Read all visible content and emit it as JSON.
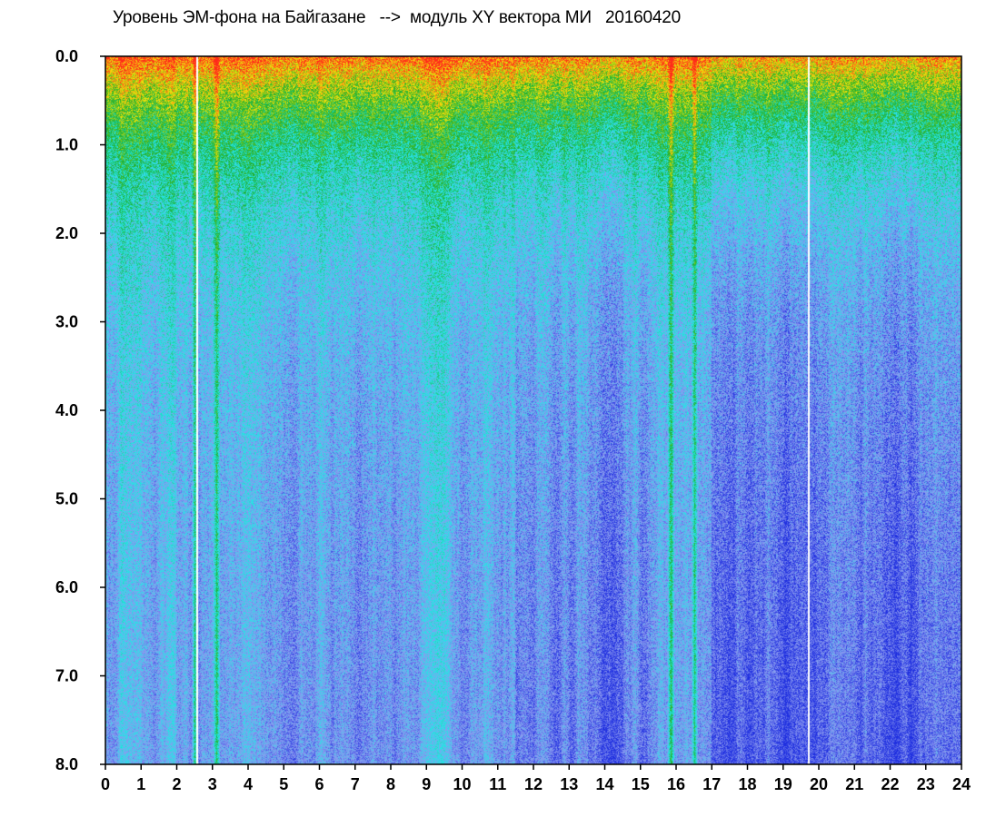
{
  "chart_data": {
    "type": "heatmap",
    "title": "Уровень ЭМ-фона на Байгазане   -->  модуль XY вектора МИ   20160420",
    "xlabel": "",
    "ylabel": "",
    "xlim": [
      0,
      24
    ],
    "ylim": [
      0,
      8
    ],
    "x_ticks": [
      "0",
      "1",
      "2",
      "3",
      "4",
      "5",
      "6",
      "7",
      "8",
      "9",
      "10",
      "11",
      "12",
      "13",
      "14",
      "15",
      "16",
      "17",
      "18",
      "19",
      "20",
      "21",
      "22",
      "23",
      "24"
    ],
    "y_ticks": [
      "0.0",
      "1.0",
      "2.0",
      "3.0",
      "4.0",
      "5.0",
      "6.0",
      "7.0",
      "8.0"
    ],
    "y_axis_inverted": true,
    "grid": false,
    "legend": "none",
    "colormap": [
      "#ff2a1a",
      "#f5e60a",
      "#1fae2a",
      "#22e6e6",
      "#8c9af0",
      "#1f2fe0"
    ],
    "gaps_hours": [
      2.55,
      19.7
    ],
    "bright_streaks_hours": [
      2.5,
      3.1,
      15.85,
      16.5
    ],
    "dark_region_hours": [
      17.0,
      24.0
    ]
  }
}
